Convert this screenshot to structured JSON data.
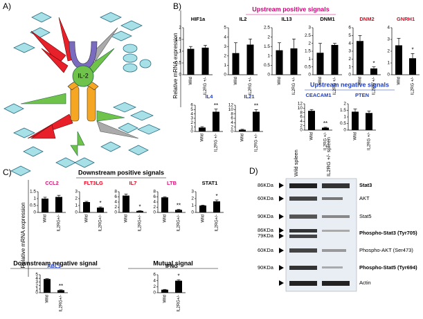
{
  "figure": {
    "panel_labels": [
      "A)",
      "B)",
      "C)",
      "D)"
    ],
    "headings": [
      {
        "text": "Upstream positive signals",
        "color": "#d0007a"
      },
      {
        "text": "Upstream negative signals",
        "color": "#1f3fbf"
      },
      {
        "text": "Downstream positive signals",
        "color": "#000000"
      },
      {
        "text": "Downstream negative signal",
        "color": "#000000"
      },
      {
        "text": "Mutual signal",
        "color": "#000000"
      }
    ],
    "axis_labels": [
      "Relative mRNA expression",
      "Relative mRNA expression"
    ]
  },
  "diagram": {
    "center_label": "IL-2"
  },
  "blot": {
    "columns": [
      "Wild spleen",
      "IL2RG +/- spleen"
    ],
    "rows": [
      {
        "markers": [
          "86KDa"
        ],
        "label": "Stat3",
        "bold": true
      },
      {
        "markers": [
          "60KDa"
        ],
        "label": "AKT",
        "bold": false
      },
      {
        "markers": [
          "90KDa"
        ],
        "label": "Stat5",
        "bold": false
      },
      {
        "markers": [
          "86KDa",
          "79KDa"
        ],
        "label": "Phospho-Stat3 (Tyr705)",
        "bold": true
      },
      {
        "markers": [
          "60KDa"
        ],
        "label": "Phospho-AKT (Ser473)",
        "bold": false
      },
      {
        "markers": [
          "90KDa"
        ],
        "label": "Phospho-Stat5 (Tyr694)",
        "bold": true
      },
      {
        "markers": [],
        "label": "Actin",
        "bold": false
      }
    ]
  },
  "chart_data": [
    {
      "type": "bar",
      "title": "HIF1a",
      "title_color": "#000000",
      "categories": [
        "Wild",
        "IL2RG +/-"
      ],
      "values": [
        1.1,
        1.15
      ],
      "errors": [
        0.1,
        0.1
      ],
      "significance": [
        null,
        null
      ],
      "color": "#000000",
      "ylim": [
        0,
        2
      ],
      "yticks": [
        0,
        0.5,
        1,
        1.5,
        2
      ]
    },
    {
      "type": "bar",
      "title": "IL2",
      "title_color": "#000000",
      "categories": [
        "Wild",
        "IL2RG +/-"
      ],
      "values": [
        2.3,
        3.2
      ],
      "errors": [
        1.1,
        0.6
      ],
      "significance": [
        null,
        null
      ],
      "color": "#000000",
      "ylim": [
        0,
        5
      ],
      "yticks": [
        0,
        1,
        2,
        3,
        4,
        5
      ]
    },
    {
      "type": "bar",
      "title": "IL13",
      "title_color": "#000000",
      "categories": [
        "Wild",
        "IL2RG +/-"
      ],
      "values": [
        1.3,
        1.4
      ],
      "errors": [
        0.4,
        0.5
      ],
      "significance": [
        null,
        null
      ],
      "color": "#000000",
      "ylim": [
        0,
        2.5
      ],
      "yticks": [
        0,
        0.5,
        1,
        1.5,
        2,
        2.5
      ]
    },
    {
      "type": "bar",
      "title": "DNM1",
      "title_color": "#000000",
      "categories": [
        "Wild",
        "IL2RG +/-"
      ],
      "values": [
        1.4,
        1.9
      ],
      "errors": [
        0.6,
        0.1
      ],
      "significance": [
        null,
        null
      ],
      "color": "#000000",
      "ylim": [
        0,
        3
      ],
      "yticks": [
        0,
        0.5,
        1,
        1.5,
        2,
        2.5,
        3
      ]
    },
    {
      "type": "bar",
      "title": "DNM2",
      "title_color": "#e8001c",
      "categories": [
        "Wild",
        "IL2RG +/-"
      ],
      "values": [
        4.3,
        0.8
      ],
      "errors": [
        0.7,
        0.2
      ],
      "significance": [
        null,
        "*"
      ],
      "color": "#000000",
      "ylim": [
        0,
        6
      ],
      "yticks": [
        0,
        1,
        2,
        3,
        4,
        5,
        6
      ]
    },
    {
      "type": "bar",
      "title": "GNRH1",
      "title_color": "#e8001c",
      "categories": [
        "Wild",
        "IL2RG +/-"
      ],
      "values": [
        2.5,
        1.4
      ],
      "errors": [
        0.6,
        0.4
      ],
      "significance": [
        null,
        "*"
      ],
      "color": "#000000",
      "ylim": [
        0,
        4
      ],
      "yticks": [
        0,
        1,
        2,
        3,
        4
      ]
    },
    {
      "type": "bar",
      "title": "IL4",
      "title_color": "#1f3fbf",
      "categories": [
        "Wild",
        "IL2RG +/-"
      ],
      "values": [
        0.9,
        4.5
      ],
      "errors": [
        0.2,
        0.6
      ],
      "significance": [
        null,
        "**"
      ],
      "color": "#000000",
      "ylim": [
        0,
        6
      ],
      "yticks": [
        0,
        1,
        2,
        3,
        4,
        5,
        6
      ]
    },
    {
      "type": "bar",
      "title": "IL21",
      "title_color": "#1f3fbf",
      "categories": [
        "Wild",
        "IL2RG +/-"
      ],
      "values": [
        0.8,
        9.0
      ],
      "errors": [
        0.2,
        1.0
      ],
      "significance": [
        null,
        "**"
      ],
      "color": "#000000",
      "ylim": [
        0,
        12
      ],
      "yticks": [
        0,
        2,
        4,
        6,
        8,
        10,
        12
      ]
    },
    {
      "type": "bar",
      "title": "CEACAM1",
      "title_color": "#1f3fbf",
      "categories": [
        "Wild",
        "IL2RG +/-"
      ],
      "values": [
        8.8,
        1.1
      ],
      "errors": [
        0.6,
        0.2
      ],
      "significance": [
        null,
        "**"
      ],
      "color": "#000000",
      "ylim": [
        0,
        12
      ],
      "yticks": [
        0,
        2,
        4,
        6,
        8,
        10,
        12
      ]
    },
    {
      "type": "bar",
      "title": "PTEN",
      "title_color": "#1f3fbf",
      "categories": [
        "Wild",
        "IL2RG +/-"
      ],
      "values": [
        1.4,
        1.3
      ],
      "errors": [
        0.2,
        0.15
      ],
      "significance": [
        null,
        null
      ],
      "color": "#000000",
      "ylim": [
        0,
        2
      ],
      "yticks": [
        0,
        0.5,
        1,
        1.5,
        2
      ]
    },
    {
      "type": "bar",
      "title": "CCL2",
      "title_color": "#e0107a",
      "categories": [
        "Wild",
        "IL2RG+/-"
      ],
      "values": [
        1.0,
        1.12
      ],
      "errors": [
        0.1,
        0.12
      ],
      "significance": [
        null,
        null
      ],
      "color": "#000000",
      "ylim": [
        0,
        1.5
      ],
      "yticks": [
        0,
        0.5,
        1,
        1.5
      ]
    },
    {
      "type": "bar",
      "title": "FLT3LG",
      "title_color": "#e8001c",
      "categories": [
        "Wild",
        "IL2RG+/-"
      ],
      "values": [
        1.5,
        0.7
      ],
      "errors": [
        0.1,
        0.1
      ],
      "significance": [
        null,
        "*"
      ],
      "color": "#000000",
      "ylim": [
        0,
        3
      ],
      "yticks": [
        0,
        1,
        2,
        3
      ]
    },
    {
      "type": "bar",
      "title": "IL7",
      "title_color": "#e8001c",
      "categories": [
        "Wild",
        "IL2RG+/-"
      ],
      "values": [
        6.5,
        0.6
      ],
      "errors": [
        0.6,
        0.1
      ],
      "significance": [
        null,
        "*"
      ],
      "color": "#000000",
      "ylim": [
        0,
        8
      ],
      "yticks": [
        0,
        2,
        4,
        6,
        8
      ]
    },
    {
      "type": "bar",
      "title": "LTB",
      "title_color": "#e0107a",
      "categories": [
        "Wild",
        "IL2RG+/-"
      ],
      "values": [
        5.8,
        1.0
      ],
      "errors": [
        0.2,
        0.2
      ],
      "significance": [
        null,
        "**"
      ],
      "color": "#000000",
      "ylim": [
        0,
        8
      ],
      "yticks": [
        0,
        2,
        4,
        6,
        8
      ]
    },
    {
      "type": "bar",
      "title": "STAT1",
      "title_color": "#000000",
      "categories": [
        "Wild",
        "IL2RG+/-"
      ],
      "values": [
        1.0,
        1.6
      ],
      "errors": [
        0.05,
        0.2
      ],
      "significance": [
        null,
        "*"
      ],
      "color": "#000000",
      "ylim": [
        0,
        3
      ],
      "yticks": [
        0,
        1,
        2,
        3
      ]
    },
    {
      "type": "bar",
      "title": "ABL1",
      "title_color": "#1f3fbf",
      "categories": [
        "Wild",
        "IL2RG+/-"
      ],
      "values": [
        3.8,
        0.7
      ],
      "errors": [
        0.1,
        0.1
      ],
      "significance": [
        null,
        "**"
      ],
      "color": "#000000",
      "ylim": [
        0,
        5
      ],
      "yticks": [
        0,
        1,
        2,
        3,
        4,
        5
      ]
    },
    {
      "type": "bar",
      "title": "IFNG",
      "title_color": "#000000",
      "categories": [
        "Wild",
        "IL2RG+/-"
      ],
      "values": [
        1.0,
        4.0
      ],
      "errors": [
        0.1,
        0.3
      ],
      "significance": [
        null,
        "*"
      ],
      "color": "#000000",
      "ylim": [
        0,
        6
      ],
      "yticks": [
        0,
        2,
        4,
        6
      ]
    }
  ]
}
